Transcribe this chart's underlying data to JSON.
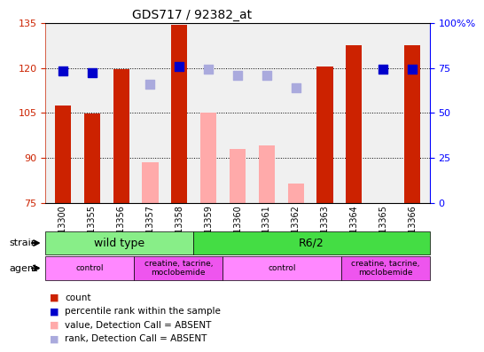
{
  "title": "GDS717 / 92382_at",
  "samples": [
    "GSM13300",
    "GSM13355",
    "GSM13356",
    "GSM13357",
    "GSM13358",
    "GSM13359",
    "GSM13360",
    "GSM13361",
    "GSM13362",
    "GSM13363",
    "GSM13364",
    "GSM13365",
    "GSM13366"
  ],
  "count_values": [
    107.5,
    104.8,
    119.5,
    null,
    134.5,
    null,
    null,
    null,
    null,
    120.5,
    127.5,
    null,
    127.5
  ],
  "count_absent_values": [
    null,
    null,
    null,
    88.5,
    null,
    105.0,
    93.0,
    94.0,
    81.5,
    null,
    null,
    null,
    null
  ],
  "percentile_present": [
    119.0,
    118.5,
    null,
    null,
    120.5,
    null,
    null,
    null,
    null,
    null,
    null,
    119.5,
    119.5
  ],
  "percentile_absent": [
    null,
    null,
    null,
    114.5,
    null,
    119.5,
    117.5,
    117.5,
    113.5,
    null,
    null,
    null,
    null
  ],
  "ylim": [
    75,
    135
  ],
  "y2lim": [
    0,
    100
  ],
  "yticks": [
    75,
    90,
    105,
    120,
    135
  ],
  "y2ticks": [
    0,
    25,
    50,
    75,
    100
  ],
  "grid_values": [
    90,
    105,
    120
  ],
  "bar_color_present": "#cc2200",
  "bar_color_absent": "#ffaaaa",
  "dot_color_present": "#0000cc",
  "dot_color_absent": "#aaaadd",
  "strain_groups": [
    {
      "label": "wild type",
      "start": 0,
      "end": 5,
      "color": "#88ee88"
    },
    {
      "label": "R6/2",
      "start": 5,
      "end": 13,
      "color": "#44dd44"
    }
  ],
  "agent_groups": [
    {
      "label": "control",
      "start": 0,
      "end": 3,
      "color": "#ff88ff"
    },
    {
      "label": "creatine, tacrine,\nmoclobemide",
      "start": 3,
      "end": 6,
      "color": "#ee55ee"
    },
    {
      "label": "control",
      "start": 6,
      "end": 10,
      "color": "#ff88ff"
    },
    {
      "label": "creatine, tacrine,\nmoclobemide",
      "start": 10,
      "end": 13,
      "color": "#ee55ee"
    }
  ],
  "bar_width": 0.55,
  "dot_size": 60
}
